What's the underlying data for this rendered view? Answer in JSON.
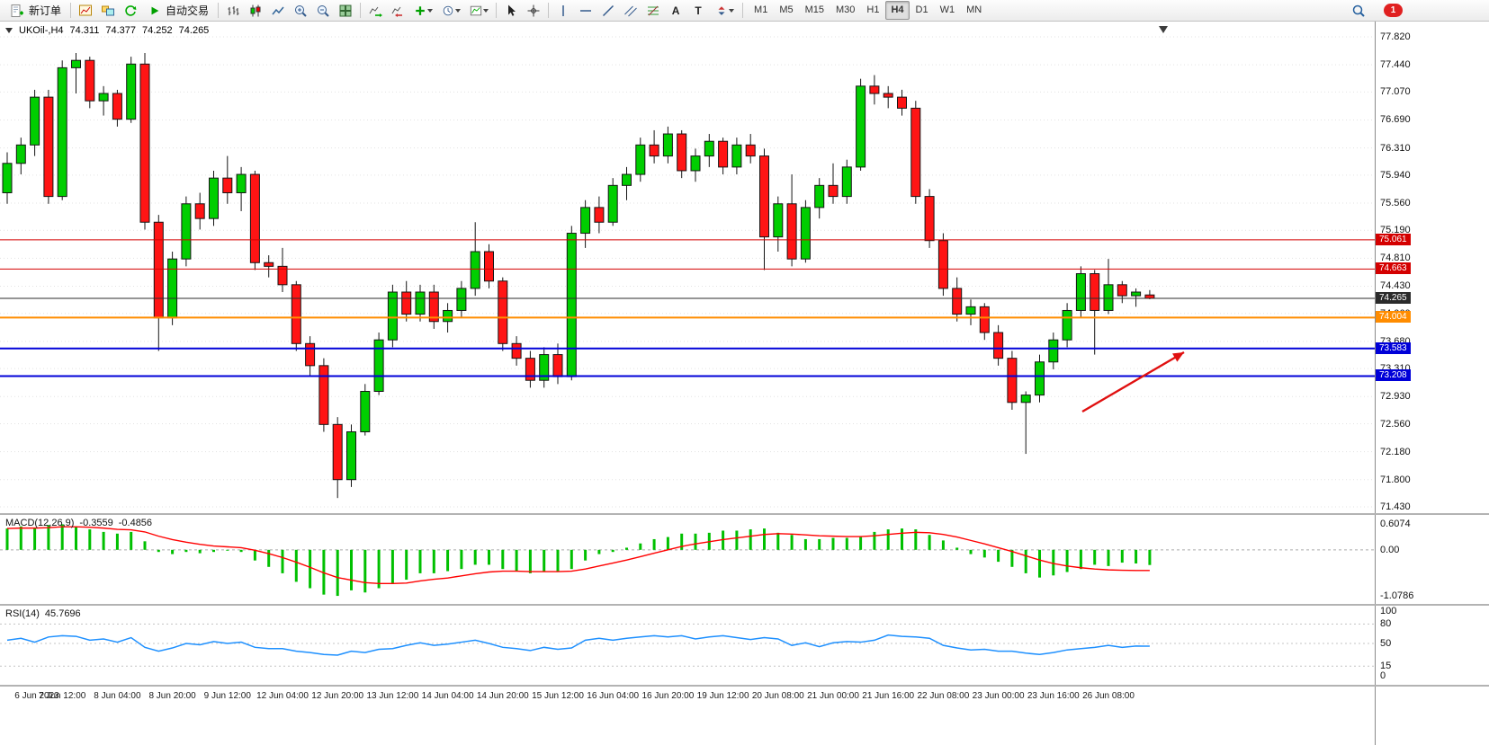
{
  "toolbar": {
    "new_order_label": "新订单",
    "autotrade_label": "自动交易",
    "timeframes": [
      "M1",
      "M5",
      "M15",
      "M30",
      "H1",
      "H4",
      "D1",
      "W1",
      "MN"
    ],
    "active_timeframe": "H4",
    "notification_count": "1",
    "text_tool_glyph": "A",
    "label_tool_glyph": "T"
  },
  "chart": {
    "symbol_header": "UKOil-,H4",
    "open": "74.311",
    "high": "74.377",
    "low": "74.252",
    "close": "74.265"
  },
  "colors": {
    "bull": "#00CE00",
    "bear": "#FF1414",
    "outline": "#151515",
    "grid": "#E3E3E3",
    "macd_hist": "#00C000",
    "macd_signal": "#FF0000",
    "rsi_line": "#1E90FF",
    "level_dash": "#C4C4C4"
  },
  "chart_data": {
    "type": "candlestick",
    "symbol": "UKOil",
    "timeframe": "H4",
    "ohlc_display": "74.311 74.377 74.252 74.265",
    "y_range": [
      71.43,
      77.82
    ],
    "price_axis_ticks": [
      "77.820",
      "77.440",
      "77.070",
      "76.690",
      "76.310",
      "75.940",
      "75.560",
      "75.190",
      "74.810",
      "74.430",
      "74.060",
      "73.680",
      "73.310",
      "72.930",
      "72.560",
      "72.180",
      "71.800",
      "71.430"
    ],
    "time_labels": [
      "6 Jun 2023",
      "7 Jun 12:00",
      "8 Jun 04:00",
      "8 Jun 20:00",
      "9 Jun 12:00",
      "12 Jun 04:00",
      "12 Jun 20:00",
      "13 Jun 12:00",
      "14 Jun 04:00",
      "14 Jun 20:00",
      "15 Jun 12:00",
      "16 Jun 04:00",
      "16 Jun 20:00",
      "19 Jun 12:00",
      "20 Jun 08:00",
      "21 Jun 00:00",
      "21 Jun 16:00",
      "22 Jun 08:00",
      "23 Jun 00:00",
      "23 Jun 16:00",
      "26 Jun 08:00"
    ],
    "candles_per_label": 4,
    "candles": [
      [
        75.7,
        76.25,
        75.55,
        76.1
      ],
      [
        76.1,
        76.45,
        75.95,
        76.35
      ],
      [
        76.35,
        77.1,
        76.2,
        77.0
      ],
      [
        77.0,
        77.1,
        75.55,
        75.65
      ],
      [
        75.65,
        77.5,
        75.6,
        77.4
      ],
      [
        77.4,
        77.6,
        77.05,
        77.5
      ],
      [
        77.5,
        77.55,
        76.85,
        76.95
      ],
      [
        76.95,
        77.15,
        76.75,
        77.05
      ],
      [
        77.05,
        77.1,
        76.6,
        76.7
      ],
      [
        76.7,
        77.55,
        76.65,
        77.45
      ],
      [
        77.45,
        77.6,
        75.2,
        75.3
      ],
      [
        75.3,
        75.4,
        73.55,
        74.0
      ],
      [
        74.0,
        74.9,
        73.9,
        74.8
      ],
      [
        74.8,
        75.65,
        74.7,
        75.55
      ],
      [
        75.55,
        75.7,
        75.2,
        75.35
      ],
      [
        75.35,
        76.0,
        75.25,
        75.9
      ],
      [
        75.9,
        76.2,
        75.55,
        75.7
      ],
      [
        75.7,
        76.05,
        75.45,
        75.95
      ],
      [
        75.95,
        76.0,
        74.65,
        74.75
      ],
      [
        74.75,
        74.85,
        74.55,
        74.7
      ],
      [
        74.7,
        74.95,
        74.35,
        74.45
      ],
      [
        74.45,
        74.5,
        73.55,
        73.65
      ],
      [
        73.65,
        73.75,
        73.2,
        73.35
      ],
      [
        73.35,
        73.45,
        72.45,
        72.55
      ],
      [
        72.55,
        72.65,
        71.55,
        71.8
      ],
      [
        71.8,
        72.55,
        71.7,
        72.45
      ],
      [
        72.45,
        73.1,
        72.4,
        73.0
      ],
      [
        73.0,
        73.8,
        72.95,
        73.7
      ],
      [
        73.7,
        74.45,
        73.6,
        74.35
      ],
      [
        74.35,
        74.5,
        73.95,
        74.05
      ],
      [
        74.05,
        74.45,
        73.95,
        74.35
      ],
      [
        74.35,
        74.45,
        73.85,
        73.95
      ],
      [
        73.95,
        74.2,
        73.8,
        74.1
      ],
      [
        74.1,
        74.5,
        74.0,
        74.4
      ],
      [
        74.4,
        75.3,
        74.3,
        74.9
      ],
      [
        74.9,
        75.0,
        74.4,
        74.5
      ],
      [
        74.5,
        74.55,
        73.55,
        73.65
      ],
      [
        73.65,
        73.75,
        73.35,
        73.45
      ],
      [
        73.45,
        73.55,
        73.05,
        73.15
      ],
      [
        73.15,
        73.6,
        73.05,
        73.5
      ],
      [
        73.5,
        73.65,
        73.1,
        73.2
      ],
      [
        73.2,
        75.25,
        73.15,
        75.15
      ],
      [
        75.15,
        75.6,
        74.95,
        75.5
      ],
      [
        75.5,
        75.65,
        75.15,
        75.3
      ],
      [
        75.3,
        75.9,
        75.25,
        75.8
      ],
      [
        75.8,
        76.05,
        75.6,
        75.95
      ],
      [
        75.95,
        76.45,
        75.85,
        76.35
      ],
      [
        76.35,
        76.55,
        76.1,
        76.2
      ],
      [
        76.2,
        76.6,
        76.1,
        76.5
      ],
      [
        76.5,
        76.55,
        75.9,
        76.0
      ],
      [
        76.0,
        76.3,
        75.85,
        76.2
      ],
      [
        76.2,
        76.5,
        76.05,
        76.4
      ],
      [
        76.4,
        76.45,
        75.95,
        76.05
      ],
      [
        76.05,
        76.45,
        75.95,
        76.35
      ],
      [
        76.35,
        76.5,
        76.1,
        76.2
      ],
      [
        76.2,
        76.3,
        74.65,
        75.1
      ],
      [
        75.1,
        75.65,
        74.9,
        75.55
      ],
      [
        75.55,
        75.95,
        74.7,
        74.8
      ],
      [
        74.8,
        75.6,
        74.75,
        75.5
      ],
      [
        75.5,
        75.9,
        75.35,
        75.8
      ],
      [
        75.8,
        76.1,
        75.55,
        75.65
      ],
      [
        75.65,
        76.15,
        75.55,
        76.05
      ],
      [
        76.05,
        77.25,
        76.0,
        77.15
      ],
      [
        77.15,
        77.3,
        76.9,
        77.05
      ],
      [
        77.05,
        77.15,
        76.85,
        77.0
      ],
      [
        77.0,
        77.1,
        76.75,
        76.85
      ],
      [
        76.85,
        76.95,
        75.55,
        75.65
      ],
      [
        75.65,
        75.75,
        74.95,
        75.05
      ],
      [
        75.05,
        75.15,
        74.3,
        74.4
      ],
      [
        74.4,
        74.55,
        73.95,
        74.05
      ],
      [
        74.05,
        74.25,
        73.9,
        74.15
      ],
      [
        74.15,
        74.2,
        73.7,
        73.8
      ],
      [
        73.8,
        73.9,
        73.35,
        73.45
      ],
      [
        73.45,
        73.55,
        72.75,
        72.85
      ],
      [
        72.85,
        73.0,
        72.15,
        72.95
      ],
      [
        72.95,
        73.5,
        72.85,
        73.4
      ],
      [
        73.4,
        73.8,
        73.3,
        73.7
      ],
      [
        73.7,
        74.2,
        73.6,
        74.1
      ],
      [
        74.1,
        74.7,
        74.0,
        74.6
      ],
      [
        74.6,
        74.65,
        73.5,
        74.1
      ],
      [
        74.1,
        74.8,
        74.05,
        74.45
      ],
      [
        74.45,
        74.5,
        74.2,
        74.3
      ],
      [
        74.3,
        74.4,
        74.15,
        74.35
      ],
      [
        74.311,
        74.377,
        74.252,
        74.265
      ]
    ],
    "hlines": [
      {
        "price": 75.061,
        "label": "75.061",
        "color": "#D40000",
        "width": 1
      },
      {
        "price": 74.663,
        "label": "74.663",
        "color": "#D40000",
        "width": 1
      },
      {
        "price": 74.265,
        "label": "74.265",
        "color": "#2B2B2B",
        "width": 1
      },
      {
        "price": 74.004,
        "label": "74.004",
        "color": "#FF8C00",
        "width": 2
      },
      {
        "price": 73.583,
        "label": "73.583",
        "color": "#0000D8",
        "width": 2
      },
      {
        "price": 73.208,
        "label": "73.208",
        "color": "#0000D8",
        "width": 2
      }
    ],
    "trend_arrow": {
      "from": [
        1203,
        434
      ],
      "to": [
        1316,
        368
      ],
      "color": "#E01010"
    },
    "macd": {
      "label": "MACD(12,26,9)",
      "value_main": "-0.3559",
      "value_signal": "-0.4856",
      "axis_ticks": [
        {
          "text": "0.6074",
          "value": 0.6074
        },
        {
          "text": "0.00",
          "value": 0
        },
        {
          "text": "-1.0786",
          "value": -1.0786
        }
      ],
      "histogram": [
        0.5,
        0.55,
        0.52,
        0.58,
        0.6,
        0.55,
        0.48,
        0.42,
        0.38,
        0.42,
        0.2,
        -0.05,
        -0.1,
        -0.05,
        -0.08,
        -0.05,
        -0.02,
        -0.05,
        -0.25,
        -0.4,
        -0.55,
        -0.75,
        -0.9,
        -1.05,
        -1.08,
        -0.95,
        -1.0,
        -0.9,
        -0.8,
        -0.7,
        -0.55,
        -0.55,
        -0.5,
        -0.45,
        -0.35,
        -0.35,
        -0.45,
        -0.5,
        -0.55,
        -0.5,
        -0.5,
        -0.45,
        -0.25,
        -0.1,
        -0.05,
        0.05,
        0.15,
        0.25,
        0.3,
        0.38,
        0.38,
        0.4,
        0.45,
        0.45,
        0.48,
        0.5,
        0.4,
        0.35,
        0.25,
        0.25,
        0.28,
        0.28,
        0.3,
        0.42,
        0.48,
        0.5,
        0.48,
        0.35,
        0.22,
        0.05,
        -0.1,
        -0.18,
        -0.28,
        -0.4,
        -0.55,
        -0.65,
        -0.6,
        -0.52,
        -0.45,
        -0.35,
        -0.38,
        -0.3,
        -0.32,
        -0.3559
      ],
      "signal": [
        0.5,
        0.51,
        0.51,
        0.52,
        0.54,
        0.54,
        0.53,
        0.51,
        0.48,
        0.47,
        0.42,
        0.32,
        0.24,
        0.18,
        0.13,
        0.09,
        0.07,
        0.05,
        -0.01,
        -0.09,
        -0.18,
        -0.29,
        -0.41,
        -0.54,
        -0.65,
        -0.71,
        -0.77,
        -0.79,
        -0.79,
        -0.78,
        -0.73,
        -0.69,
        -0.66,
        -0.61,
        -0.56,
        -0.52,
        -0.5,
        -0.5,
        -0.51,
        -0.51,
        -0.51,
        -0.5,
        -0.45,
        -0.38,
        -0.31,
        -0.24,
        -0.16,
        -0.08,
        0.0,
        0.08,
        0.14,
        0.19,
        0.24,
        0.28,
        0.32,
        0.36,
        0.38,
        0.37,
        0.35,
        0.33,
        0.32,
        0.31,
        0.31,
        0.33,
        0.36,
        0.39,
        0.41,
        0.4,
        0.36,
        0.3,
        0.22,
        0.14,
        0.05,
        -0.04,
        -0.14,
        -0.24,
        -0.32,
        -0.38,
        -0.42,
        -0.45,
        -0.47,
        -0.48,
        -0.485,
        -0.4856
      ]
    },
    "rsi": {
      "label": "RSI(14)",
      "value": "45.7696",
      "axis_ticks": [
        {
          "text": "100",
          "value": 100
        },
        {
          "text": "80",
          "value": 80
        },
        {
          "text": "50",
          "value": 50
        },
        {
          "text": "15",
          "value": 15
        },
        {
          "text": "0",
          "value": 0
        }
      ],
      "levels": [
        80,
        50,
        15
      ],
      "values": [
        55,
        58,
        52,
        60,
        62,
        61,
        55,
        57,
        52,
        59,
        44,
        38,
        43,
        50,
        48,
        53,
        50,
        52,
        44,
        42,
        42,
        38,
        36,
        33,
        32,
        38,
        36,
        41,
        42,
        47,
        51,
        47,
        49,
        52,
        55,
        50,
        44,
        42,
        39,
        44,
        41,
        43,
        55,
        58,
        55,
        58,
        60,
        62,
        60,
        62,
        57,
        60,
        62,
        59,
        56,
        59,
        57,
        47,
        51,
        45,
        51,
        53,
        52,
        55,
        63,
        61,
        60,
        58,
        47,
        43,
        40,
        41,
        38,
        38,
        35,
        33,
        36,
        40,
        42,
        44,
        47,
        44,
        46,
        45.7696
      ]
    }
  }
}
